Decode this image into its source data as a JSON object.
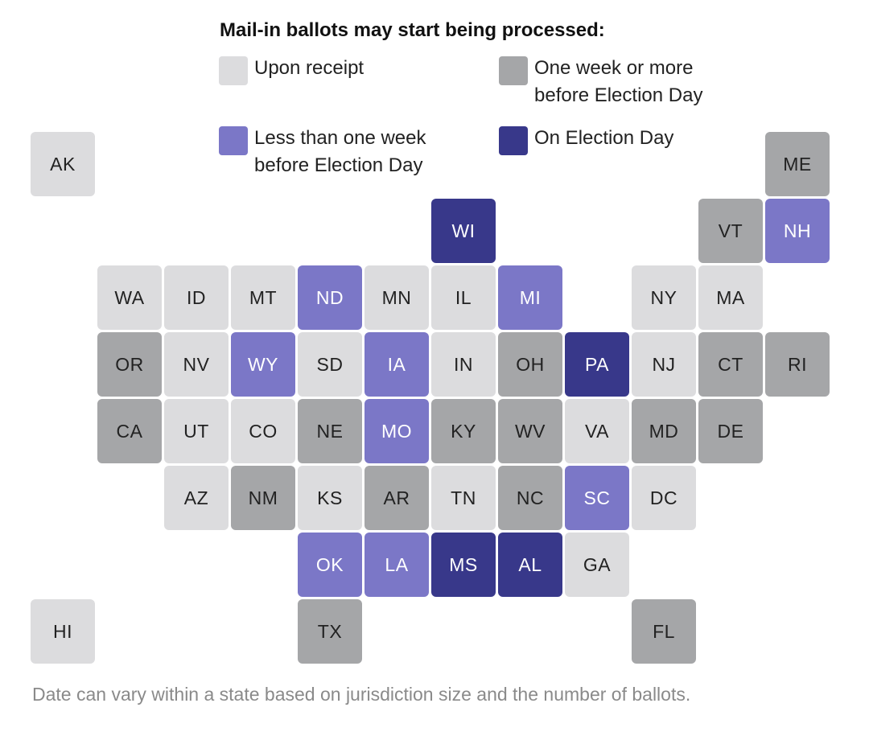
{
  "title": "Mail-in ballots may start being processed:",
  "colors": {
    "upon_receipt": "#dcdcde",
    "week_or_more": "#a5a6a8",
    "less_than_week": "#7b77c7",
    "election_day": "#38388a"
  },
  "legend": [
    {
      "key": "upon_receipt",
      "lines": [
        "Upon receipt"
      ]
    },
    {
      "key": "week_or_more",
      "lines": [
        "One week or more",
        "before Election Day"
      ]
    },
    {
      "key": "less_than_week",
      "lines": [
        "Less than one week",
        "before Election Day"
      ]
    },
    {
      "key": "election_day",
      "lines": [
        "On Election Day"
      ]
    }
  ],
  "states": [
    {
      "abbr": "AK",
      "col": 0,
      "row": 0,
      "cat": "upon_receipt"
    },
    {
      "abbr": "ME",
      "col": 11,
      "row": 0,
      "cat": "week_or_more"
    },
    {
      "abbr": "WI",
      "col": 6,
      "row": 1,
      "cat": "election_day"
    },
    {
      "abbr": "VT",
      "col": 10,
      "row": 1,
      "cat": "week_or_more"
    },
    {
      "abbr": "NH",
      "col": 11,
      "row": 1,
      "cat": "less_than_week"
    },
    {
      "abbr": "WA",
      "col": 1,
      "row": 2,
      "cat": "upon_receipt"
    },
    {
      "abbr": "ID",
      "col": 2,
      "row": 2,
      "cat": "upon_receipt"
    },
    {
      "abbr": "MT",
      "col": 3,
      "row": 2,
      "cat": "upon_receipt"
    },
    {
      "abbr": "ND",
      "col": 4,
      "row": 2,
      "cat": "less_than_week"
    },
    {
      "abbr": "MN",
      "col": 5,
      "row": 2,
      "cat": "upon_receipt"
    },
    {
      "abbr": "IL",
      "col": 6,
      "row": 2,
      "cat": "upon_receipt"
    },
    {
      "abbr": "MI",
      "col": 7,
      "row": 2,
      "cat": "less_than_week"
    },
    {
      "abbr": "NY",
      "col": 9,
      "row": 2,
      "cat": "upon_receipt"
    },
    {
      "abbr": "MA",
      "col": 10,
      "row": 2,
      "cat": "upon_receipt"
    },
    {
      "abbr": "OR",
      "col": 1,
      "row": 3,
      "cat": "week_or_more"
    },
    {
      "abbr": "NV",
      "col": 2,
      "row": 3,
      "cat": "upon_receipt"
    },
    {
      "abbr": "WY",
      "col": 3,
      "row": 3,
      "cat": "less_than_week"
    },
    {
      "abbr": "SD",
      "col": 4,
      "row": 3,
      "cat": "upon_receipt"
    },
    {
      "abbr": "IA",
      "col": 5,
      "row": 3,
      "cat": "less_than_week"
    },
    {
      "abbr": "IN",
      "col": 6,
      "row": 3,
      "cat": "upon_receipt"
    },
    {
      "abbr": "OH",
      "col": 7,
      "row": 3,
      "cat": "week_or_more"
    },
    {
      "abbr": "PA",
      "col": 8,
      "row": 3,
      "cat": "election_day"
    },
    {
      "abbr": "NJ",
      "col": 9,
      "row": 3,
      "cat": "upon_receipt"
    },
    {
      "abbr": "CT",
      "col": 10,
      "row": 3,
      "cat": "week_or_more"
    },
    {
      "abbr": "RI",
      "col": 11,
      "row": 3,
      "cat": "week_or_more"
    },
    {
      "abbr": "CA",
      "col": 1,
      "row": 4,
      "cat": "week_or_more"
    },
    {
      "abbr": "UT",
      "col": 2,
      "row": 4,
      "cat": "upon_receipt"
    },
    {
      "abbr": "CO",
      "col": 3,
      "row": 4,
      "cat": "upon_receipt"
    },
    {
      "abbr": "NE",
      "col": 4,
      "row": 4,
      "cat": "week_or_more"
    },
    {
      "abbr": "MO",
      "col": 5,
      "row": 4,
      "cat": "less_than_week"
    },
    {
      "abbr": "KY",
      "col": 6,
      "row": 4,
      "cat": "week_or_more"
    },
    {
      "abbr": "WV",
      "col": 7,
      "row": 4,
      "cat": "week_or_more"
    },
    {
      "abbr": "VA",
      "col": 8,
      "row": 4,
      "cat": "upon_receipt"
    },
    {
      "abbr": "MD",
      "col": 9,
      "row": 4,
      "cat": "week_or_more"
    },
    {
      "abbr": "DE",
      "col": 10,
      "row": 4,
      "cat": "week_or_more"
    },
    {
      "abbr": "AZ",
      "col": 2,
      "row": 5,
      "cat": "upon_receipt"
    },
    {
      "abbr": "NM",
      "col": 3,
      "row": 5,
      "cat": "week_or_more"
    },
    {
      "abbr": "KS",
      "col": 4,
      "row": 5,
      "cat": "upon_receipt"
    },
    {
      "abbr": "AR",
      "col": 5,
      "row": 5,
      "cat": "week_or_more"
    },
    {
      "abbr": "TN",
      "col": 6,
      "row": 5,
      "cat": "upon_receipt"
    },
    {
      "abbr": "NC",
      "col": 7,
      "row": 5,
      "cat": "week_or_more"
    },
    {
      "abbr": "SC",
      "col": 8,
      "row": 5,
      "cat": "less_than_week"
    },
    {
      "abbr": "DC",
      "col": 9,
      "row": 5,
      "cat": "upon_receipt"
    },
    {
      "abbr": "OK",
      "col": 4,
      "row": 6,
      "cat": "less_than_week"
    },
    {
      "abbr": "LA",
      "col": 5,
      "row": 6,
      "cat": "less_than_week"
    },
    {
      "abbr": "MS",
      "col": 6,
      "row": 6,
      "cat": "election_day"
    },
    {
      "abbr": "AL",
      "col": 7,
      "row": 6,
      "cat": "election_day"
    },
    {
      "abbr": "GA",
      "col": 8,
      "row": 6,
      "cat": "upon_receipt"
    },
    {
      "abbr": "HI",
      "col": 0,
      "row": 7,
      "cat": "upon_receipt"
    },
    {
      "abbr": "TX",
      "col": 4,
      "row": 7,
      "cat": "week_or_more"
    },
    {
      "abbr": "FL",
      "col": 9,
      "row": 7,
      "cat": "week_or_more"
    }
  ],
  "note": "Date can vary within a state based on jurisdiction size and the number of ballots."
}
